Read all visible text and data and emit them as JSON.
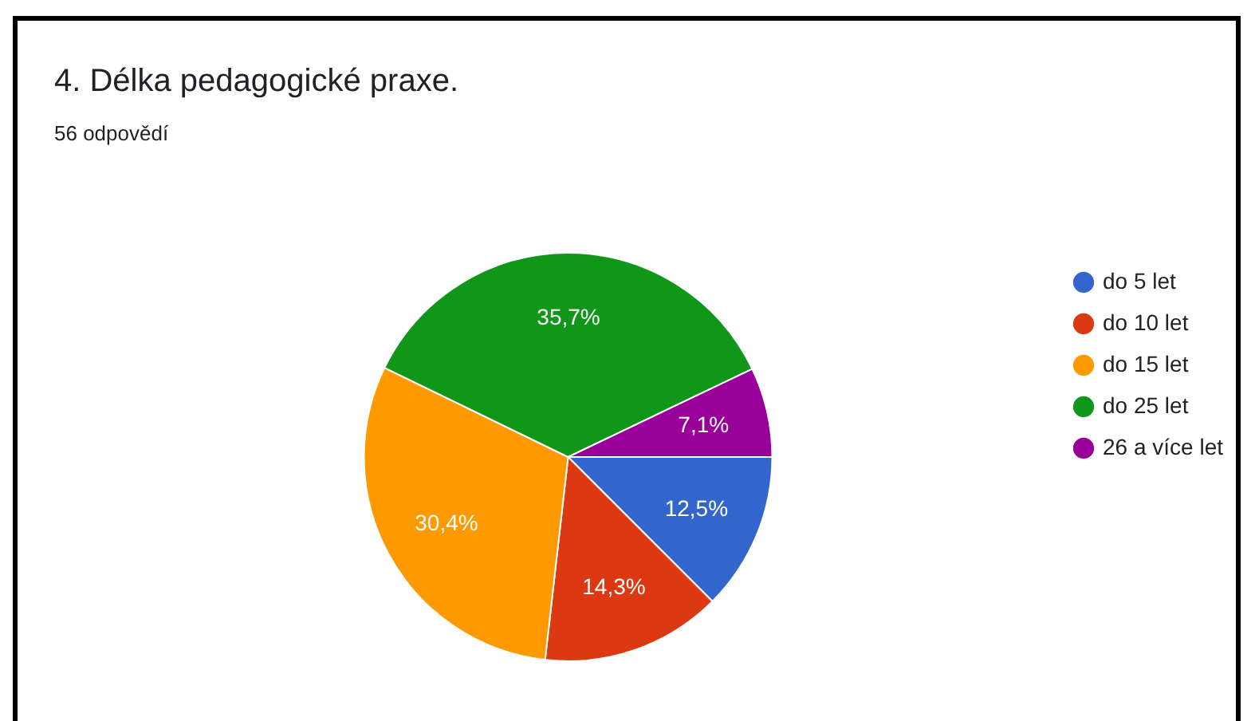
{
  "chart_data": {
    "type": "pie",
    "title": "4. Délka pedagogické praxe.",
    "subtitle": "56 odpovědí",
    "categories": [
      "do 5 let",
      "do 10 let",
      "do 15 let",
      "do 25 let",
      "26 a více let"
    ],
    "values": [
      12.5,
      14.3,
      30.4,
      35.7,
      7.1
    ],
    "colors": [
      "#3366cc",
      "#dc3912",
      "#ff9900",
      "#109618",
      "#990099"
    ],
    "value_labels": [
      "12,5%",
      "14,3%",
      "30,4%",
      "35,7%",
      "7,1%"
    ],
    "legend": "right"
  }
}
